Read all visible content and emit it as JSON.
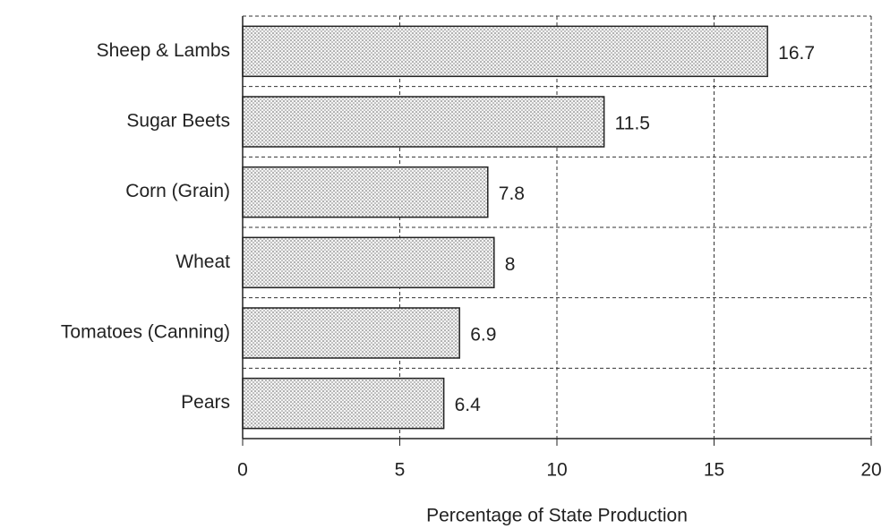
{
  "chart_data": {
    "type": "barh",
    "categories": [
      "Sheep & Lambs",
      "Sugar Beets",
      "Corn (Grain)",
      "Wheat",
      "Tomatoes (Canning)",
      "Pears"
    ],
    "values": [
      16.7,
      11.5,
      7.8,
      8,
      6.9,
      6.4
    ],
    "color": "#d8d8d8",
    "xlim": [
      0,
      20
    ],
    "xticks": [
      0,
      5,
      10,
      15,
      20
    ],
    "xlabel": "Percentage of State Production",
    "grid": true
  }
}
